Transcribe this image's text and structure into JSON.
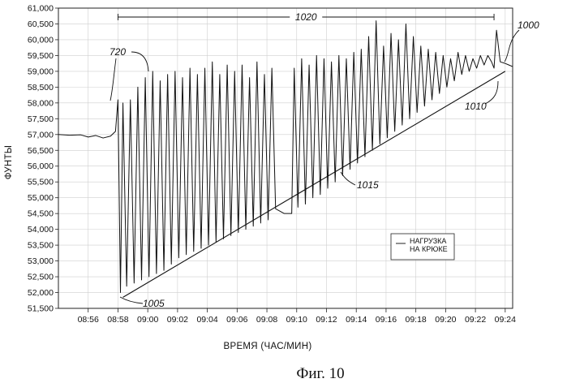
{
  "figure_caption": "Фиг. 10",
  "chart_data": {
    "type": "line",
    "xlabel": "ВРЕМЯ (ЧАС/МИН)",
    "ylabel": "ФУНТЫ",
    "x_ticks": [
      "08:56",
      "08:58",
      "09:00",
      "09:02",
      "09:04",
      "09:06",
      "09:08",
      "09:10",
      "09:12",
      "09:14",
      "09:16",
      "09:18",
      "09:20",
      "09:22",
      "09:24"
    ],
    "y_ticks": [
      "51,500",
      "52,000",
      "52,500",
      "53,000",
      "53,500",
      "54,000",
      "54,500",
      "55,000",
      "55,500",
      "56,000",
      "56,500",
      "57,000",
      "57,500",
      "58,000",
      "58,500",
      "59,000",
      "59,500",
      "60,000",
      "60,500",
      "61,000"
    ],
    "xlim": [
      "08:54",
      "09:24:30"
    ],
    "ylim": [
      51500,
      61000
    ],
    "grid": true,
    "legend": {
      "position": "bottom-right",
      "entries": [
        "НАГРУЗКА НА КРЮКЕ"
      ]
    },
    "series": [
      {
        "name": "НАГРУЗКА НА КРЮКЕ",
        "points": [
          [
            "08:54:00",
            57000
          ],
          [
            "08:54:45",
            56980
          ],
          [
            "08:55:30",
            56990
          ],
          [
            "08:56:00",
            56920
          ],
          [
            "08:56:30",
            56970
          ],
          [
            "08:57:00",
            56890
          ],
          [
            "08:57:30",
            56950
          ],
          [
            "08:57:50",
            57100
          ],
          [
            "08:58:00",
            58100
          ],
          [
            "08:58:10",
            52000
          ],
          [
            "08:58:20",
            58000
          ],
          [
            "08:58:35",
            52200
          ],
          [
            "08:58:50",
            58100
          ],
          [
            "08:59:05",
            52300
          ],
          [
            "08:59:20",
            58500
          ],
          [
            "08:59:35",
            52400
          ],
          [
            "08:59:50",
            58800
          ],
          [
            "09:00:05",
            52500
          ],
          [
            "09:00:20",
            59000
          ],
          [
            "09:00:35",
            52600
          ],
          [
            "09:00:50",
            58700
          ],
          [
            "09:01:05",
            52700
          ],
          [
            "09:01:20",
            58900
          ],
          [
            "09:01:35",
            52900
          ],
          [
            "09:01:50",
            59000
          ],
          [
            "09:02:05",
            53100
          ],
          [
            "09:02:20",
            58800
          ],
          [
            "09:02:35",
            53200
          ],
          [
            "09:02:50",
            59100
          ],
          [
            "09:03:05",
            53300
          ],
          [
            "09:03:20",
            58900
          ],
          [
            "09:03:35",
            53400
          ],
          [
            "09:03:50",
            59100
          ],
          [
            "09:04:05",
            53500
          ],
          [
            "09:04:20",
            59300
          ],
          [
            "09:04:35",
            53600
          ],
          [
            "09:04:50",
            58900
          ],
          [
            "09:05:05",
            53700
          ],
          [
            "09:05:20",
            59200
          ],
          [
            "09:05:35",
            53800
          ],
          [
            "09:05:50",
            59000
          ],
          [
            "09:06:05",
            53900
          ],
          [
            "09:06:20",
            59200
          ],
          [
            "09:06:35",
            54000
          ],
          [
            "09:06:50",
            58800
          ],
          [
            "09:07:05",
            54100
          ],
          [
            "09:07:20",
            59300
          ],
          [
            "09:07:35",
            54200
          ],
          [
            "09:07:50",
            58900
          ],
          [
            "09:08:05",
            54300
          ],
          [
            "09:08:20",
            59100
          ],
          [
            "09:08:35",
            54650
          ],
          [
            "09:09:10",
            54500
          ],
          [
            "09:09:40",
            54500
          ],
          [
            "09:09:50",
            59100
          ],
          [
            "09:10:05",
            54700
          ],
          [
            "09:10:20",
            59400
          ],
          [
            "09:10:35",
            54800
          ],
          [
            "09:10:50",
            59200
          ],
          [
            "09:11:05",
            55000
          ],
          [
            "09:11:20",
            59500
          ],
          [
            "09:11:35",
            55100
          ],
          [
            "09:11:50",
            59400
          ],
          [
            "09:12:05",
            55300
          ],
          [
            "09:12:20",
            59300
          ],
          [
            "09:12:35",
            55500
          ],
          [
            "09:12:50",
            59500
          ],
          [
            "09:13:05",
            55700
          ],
          [
            "09:13:20",
            59400
          ],
          [
            "09:13:35",
            55900
          ],
          [
            "09:13:50",
            59600
          ],
          [
            "09:14:05",
            56100
          ],
          [
            "09:14:20",
            59700
          ],
          [
            "09:14:35",
            56300
          ],
          [
            "09:14:50",
            60100
          ],
          [
            "09:15:05",
            56500
          ],
          [
            "09:15:20",
            60600
          ],
          [
            "09:15:35",
            56700
          ],
          [
            "09:15:50",
            59800
          ],
          [
            "09:16:05",
            56900
          ],
          [
            "09:16:20",
            60200
          ],
          [
            "09:16:35",
            57100
          ],
          [
            "09:16:50",
            60000
          ],
          [
            "09:17:05",
            57300
          ],
          [
            "09:17:20",
            60500
          ],
          [
            "09:17:35",
            57500
          ],
          [
            "09:17:50",
            60100
          ],
          [
            "09:18:05",
            57700
          ],
          [
            "09:18:20",
            59800
          ],
          [
            "09:18:35",
            57900
          ],
          [
            "09:18:50",
            59700
          ],
          [
            "09:19:05",
            58100
          ],
          [
            "09:19:20",
            59600
          ],
          [
            "09:19:35",
            58300
          ],
          [
            "09:19:50",
            59500
          ],
          [
            "09:20:05",
            58500
          ],
          [
            "09:20:20",
            59400
          ],
          [
            "09:20:35",
            58700
          ],
          [
            "09:20:50",
            59600
          ],
          [
            "09:21:05",
            58900
          ],
          [
            "09:21:20",
            59500
          ],
          [
            "09:21:35",
            59000
          ],
          [
            "09:21:50",
            59400
          ],
          [
            "09:22:05",
            59100
          ],
          [
            "09:22:20",
            59500
          ],
          [
            "09:22:35",
            59200
          ],
          [
            "09:22:50",
            59500
          ],
          [
            "09:23:05",
            59300
          ],
          [
            "09:23:15",
            59100
          ],
          [
            "09:23:25",
            60300
          ],
          [
            "09:23:40",
            59300
          ],
          [
            "09:24:00",
            59250
          ],
          [
            "09:24:15",
            59200
          ],
          [
            "09:24:30",
            59150
          ]
        ]
      }
    ],
    "annotations": [
      {
        "label": "1000",
        "target": "09:24:30",
        "y": 59200
      },
      {
        "label": "1005",
        "target": "08:58:30",
        "y": 51900
      },
      {
        "label": "1010",
        "target": "09:24:00",
        "y": 59000
      },
      {
        "label": "1015",
        "target": "09:14:00",
        "y": 56000
      },
      {
        "label": "720",
        "target": [
          "08:58:00",
          "09:01:20"
        ],
        "y": 58100
      },
      {
        "label": "1020",
        "range": [
          "08:58:00",
          "09:23:15"
        ],
        "y": 60900
      }
    ],
    "trend_line": {
      "from": [
        "08:58:20",
        51850
      ],
      "to": [
        "09:24:00",
        59000
      ]
    }
  }
}
